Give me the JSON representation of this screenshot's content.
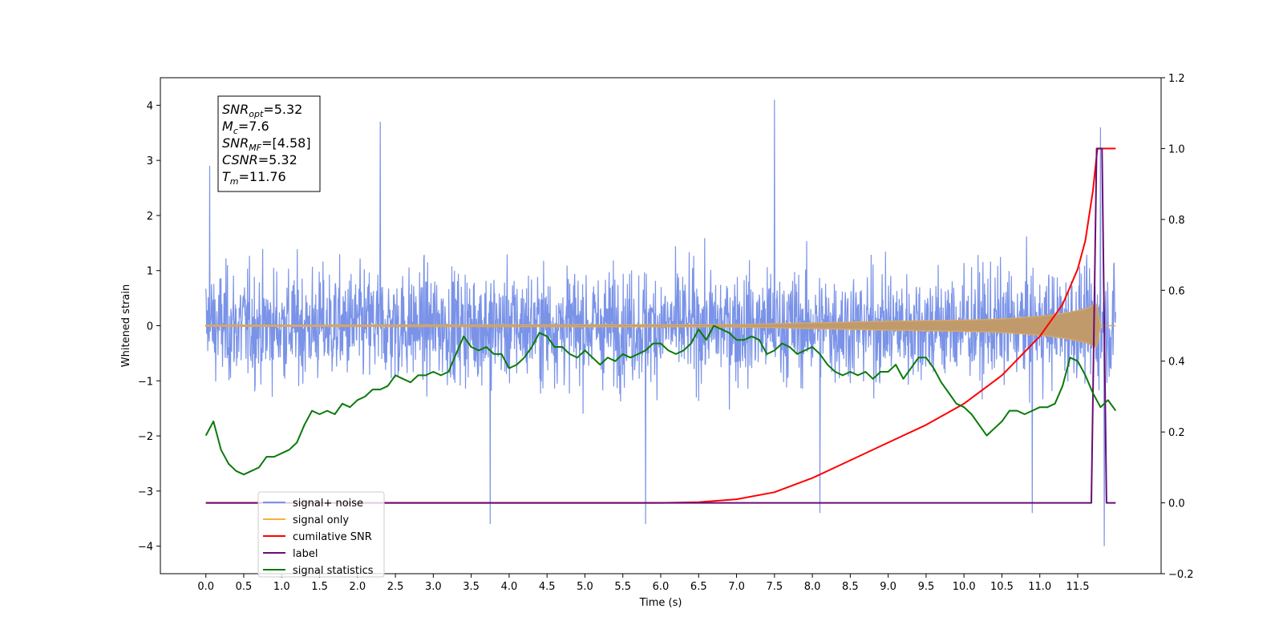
{
  "chart_data": {
    "type": "line",
    "xlabel": "Time (s)",
    "ylabel": "Whitened strain",
    "xlim": [
      -0.6,
      12.6
    ],
    "ylim_left": [
      -4.5,
      4.5
    ],
    "ylim_right": [
      -0.2,
      1.2
    ],
    "x_ticks": [
      0.0,
      0.5,
      1.0,
      1.5,
      2.0,
      2.5,
      3.0,
      3.5,
      4.0,
      4.5,
      5.0,
      5.5,
      6.0,
      6.5,
      7.0,
      7.5,
      8.0,
      8.5,
      9.0,
      9.5,
      10.0,
      10.5,
      11.0,
      11.5
    ],
    "x_tick_labels": [
      "0.0",
      "0.5",
      "1.0",
      "1.5",
      "2.0",
      "2.5",
      "3.0",
      "3.5",
      "4.0",
      "4.5",
      "5.0",
      "5.5",
      "6.0",
      "6.5",
      "7.0",
      "7.5",
      "8.0",
      "8.5",
      "9.0",
      "9.5",
      "10.0",
      "10.5",
      "11.0",
      "11.5"
    ],
    "y_left_ticks": [
      4,
      3,
      2,
      1,
      0,
      -1,
      -2,
      -3,
      -4
    ],
    "y_left_tick_labels": [
      "4",
      "3",
      "2",
      "1",
      "0",
      "−1",
      "−2",
      "−3",
      "−4"
    ],
    "y_right_ticks": [
      1.2,
      1.0,
      0.8,
      0.6,
      0.4,
      0.2,
      0.0,
      -0.2
    ],
    "y_right_tick_labels": [
      "1.2",
      "1.0",
      "0.8",
      "0.6",
      "0.4",
      "0.2",
      "0.0",
      "−0.2"
    ],
    "grid": false,
    "legend_placement": "lower-left",
    "info_box": {
      "snr_opt": {
        "main": "SNR",
        "sub": "opt",
        "value": "=5.32"
      },
      "mc": {
        "main": "M",
        "sub": "c",
        "value": "=7.6"
      },
      "snr_mf": {
        "main": "SNR",
        "sub": "MF",
        "value": "=[4.58]"
      },
      "csnr": {
        "main": "CSNR",
        "value": "=5.32"
      },
      "tm": {
        "main": "T",
        "sub": "m",
        "value": "=11.76"
      }
    },
    "series": [
      {
        "name": "signal+ noise",
        "axis": "left",
        "color": "#7a93e8",
        "description_ranges": {
          "x_start": 0.0,
          "x_end": 12.0,
          "typical_envelope": [
            -2.0,
            2.0
          ]
        },
        "peaks": [
          {
            "x": 0.05,
            "y": 2.9
          },
          {
            "x": 2.3,
            "y": 3.7
          },
          {
            "x": 7.5,
            "y": 4.1
          },
          {
            "x": 3.75,
            "y": -3.6
          },
          {
            "x": 5.8,
            "y": -3.6
          },
          {
            "x": 11.8,
            "y": 3.6
          },
          {
            "x": 11.85,
            "y": -4.0
          },
          {
            "x": 8.1,
            "y": -3.4
          },
          {
            "x": 10.9,
            "y": -3.4
          }
        ]
      },
      {
        "name": "signal only",
        "axis": "left",
        "color": "#f5b041",
        "envelope": {
          "x": [
            0.0,
            7.0,
            8.0,
            9.0,
            10.0,
            10.5,
            11.0,
            11.3,
            11.6,
            11.75,
            11.8,
            12.0
          ],
          "amp": [
            0.01,
            0.02,
            0.05,
            0.08,
            0.1,
            0.12,
            0.17,
            0.22,
            0.3,
            0.4,
            0.0,
            0.0
          ]
        }
      },
      {
        "name": "cumilative SNR",
        "axis": "right",
        "color": "#ff0000",
        "x": [
          0.0,
          6.0,
          6.5,
          7.0,
          7.5,
          8.0,
          8.5,
          9.0,
          9.5,
          10.0,
          10.5,
          11.0,
          11.3,
          11.5,
          11.6,
          11.7,
          11.76,
          11.8,
          12.0
        ],
        "y": [
          0.0,
          0.0,
          0.002,
          0.01,
          0.03,
          0.07,
          0.12,
          0.17,
          0.22,
          0.28,
          0.36,
          0.47,
          0.56,
          0.66,
          0.74,
          0.88,
          1.0,
          1.0,
          1.0
        ]
      },
      {
        "name": "label",
        "axis": "right",
        "color": "#6a0d75",
        "x": [
          0.0,
          11.68,
          11.75,
          11.82,
          11.88,
          12.0
        ],
        "y": [
          0.0,
          0.0,
          1.0,
          1.0,
          0.0,
          0.0
        ]
      },
      {
        "name": "signal statistics",
        "axis": "right",
        "color": "#0a7a0a",
        "x": [
          0.0,
          0.1,
          0.2,
          0.3,
          0.4,
          0.5,
          0.6,
          0.7,
          0.8,
          0.9,
          1.0,
          1.1,
          1.2,
          1.3,
          1.4,
          1.5,
          1.6,
          1.7,
          1.8,
          1.9,
          2.0,
          2.1,
          2.2,
          2.3,
          2.4,
          2.5,
          2.6,
          2.7,
          2.8,
          2.9,
          3.0,
          3.1,
          3.2,
          3.3,
          3.4,
          3.5,
          3.6,
          3.7,
          3.8,
          3.9,
          4.0,
          4.1,
          4.2,
          4.3,
          4.4,
          4.5,
          4.6,
          4.7,
          4.8,
          4.9,
          5.0,
          5.1,
          5.2,
          5.3,
          5.4,
          5.5,
          5.6,
          5.7,
          5.8,
          5.9,
          6.0,
          6.1,
          6.2,
          6.3,
          6.4,
          6.5,
          6.6,
          6.7,
          6.8,
          6.9,
          7.0,
          7.1,
          7.2,
          7.3,
          7.4,
          7.5,
          7.6,
          7.7,
          7.8,
          7.9,
          8.0,
          8.1,
          8.2,
          8.3,
          8.4,
          8.5,
          8.6,
          8.7,
          8.8,
          8.9,
          9.0,
          9.1,
          9.2,
          9.3,
          9.4,
          9.5,
          9.6,
          9.7,
          9.8,
          9.9,
          10.0,
          10.1,
          10.2,
          10.3,
          10.4,
          10.5,
          10.6,
          10.7,
          10.8,
          10.9,
          11.0,
          11.1,
          11.2,
          11.3,
          11.4,
          11.5,
          11.6,
          11.7,
          11.8,
          11.9,
          12.0
        ],
        "y": [
          0.19,
          0.23,
          0.15,
          0.11,
          0.09,
          0.08,
          0.09,
          0.1,
          0.13,
          0.13,
          0.14,
          0.15,
          0.17,
          0.22,
          0.26,
          0.25,
          0.26,
          0.25,
          0.28,
          0.27,
          0.29,
          0.3,
          0.32,
          0.32,
          0.33,
          0.36,
          0.35,
          0.34,
          0.36,
          0.36,
          0.37,
          0.36,
          0.37,
          0.42,
          0.47,
          0.44,
          0.43,
          0.44,
          0.42,
          0.42,
          0.38,
          0.39,
          0.41,
          0.44,
          0.48,
          0.47,
          0.44,
          0.44,
          0.42,
          0.41,
          0.43,
          0.41,
          0.39,
          0.41,
          0.4,
          0.42,
          0.41,
          0.42,
          0.43,
          0.45,
          0.45,
          0.43,
          0.42,
          0.43,
          0.45,
          0.49,
          0.46,
          0.5,
          0.49,
          0.48,
          0.46,
          0.46,
          0.47,
          0.46,
          0.42,
          0.43,
          0.45,
          0.44,
          0.42,
          0.43,
          0.44,
          0.42,
          0.39,
          0.37,
          0.36,
          0.37,
          0.36,
          0.37,
          0.35,
          0.37,
          0.37,
          0.39,
          0.35,
          0.38,
          0.41,
          0.41,
          0.38,
          0.34,
          0.31,
          0.28,
          0.27,
          0.25,
          0.22,
          0.19,
          0.21,
          0.23,
          0.26,
          0.26,
          0.25,
          0.26,
          0.27,
          0.27,
          0.28,
          0.33,
          0.41,
          0.4,
          0.36,
          0.31,
          0.27,
          0.29,
          0.26
        ]
      }
    ],
    "legend_entries": [
      {
        "label": "signal+ noise",
        "color": "#7a93e8"
      },
      {
        "label": "signal only",
        "color": "#f5b041"
      },
      {
        "label": "cumilative SNR",
        "color": "#ff0000"
      },
      {
        "label": "label",
        "color": "#6a0d75"
      },
      {
        "label": "signal statistics",
        "color": "#0a7a0a"
      }
    ]
  }
}
